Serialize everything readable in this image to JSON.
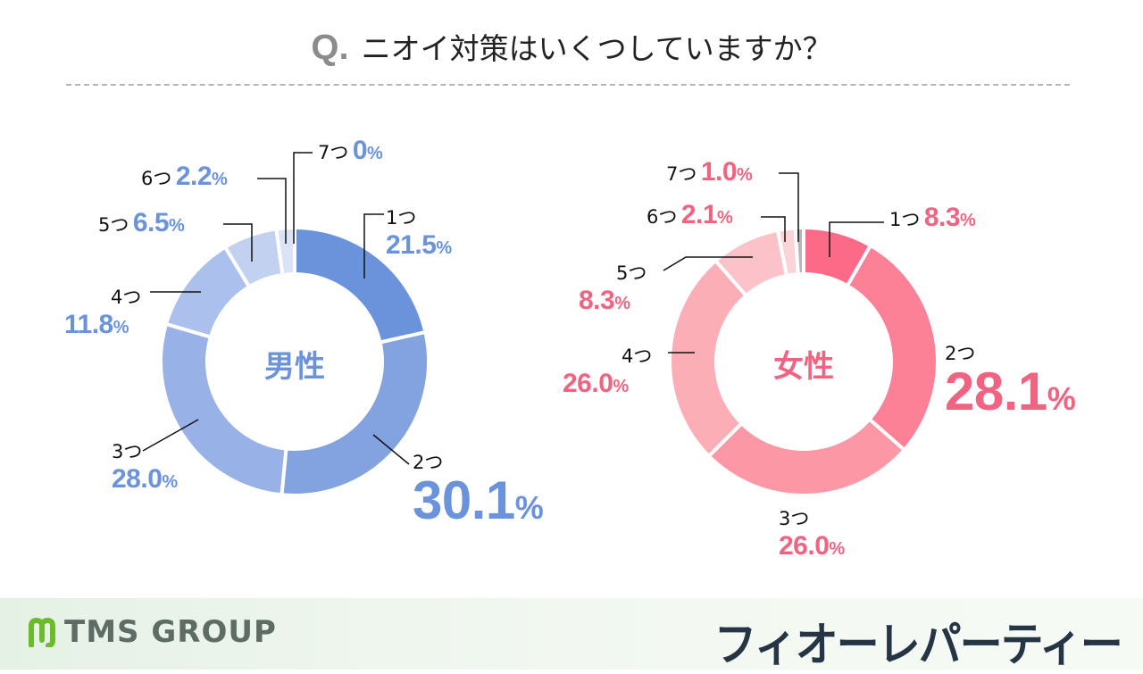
{
  "title": {
    "prefix": "Q.",
    "question": "ニオイ対策はいくつしていますか？"
  },
  "male": {
    "center_label": "男性",
    "accent": "#6a93dc",
    "items": [
      {
        "count": "1つ",
        "pct": "21.5",
        "value": 21.5,
        "color": "#6a93dc"
      },
      {
        "count": "2つ",
        "pct": "30.1",
        "value": 30.1,
        "color": "#82a2e0"
      },
      {
        "count": "3つ",
        "pct": "28.0",
        "value": 28.0,
        "color": "#98b1e7"
      },
      {
        "count": "4つ",
        "pct": "11.8",
        "value": 11.8,
        "color": "#abc0ec"
      },
      {
        "count": "5つ",
        "pct": "6.5",
        "value": 6.5,
        "color": "#c3d1f1"
      },
      {
        "count": "6つ",
        "pct": "2.2",
        "value": 2.2,
        "color": "#dbe3f6"
      },
      {
        "count": "7つ",
        "pct": "0",
        "value": 0,
        "color": "#eef2fb"
      }
    ]
  },
  "female": {
    "center_label": "女性",
    "accent": "#f06482",
    "items": [
      {
        "count": "1つ",
        "pct": "8.3",
        "value": 8.3,
        "color": "#fc6a87"
      },
      {
        "count": "2つ",
        "pct": "28.1",
        "value": 28.1,
        "color": "#fc8196"
      },
      {
        "count": "3つ",
        "pct": "26.0",
        "value": 26.0,
        "color": "#fc98a6"
      },
      {
        "count": "4つ",
        "pct": "26.0",
        "value": 26.0,
        "color": "#fbaeb6"
      },
      {
        "count": "5つ",
        "pct": "8.3",
        "value": 8.3,
        "color": "#fbc3c9"
      },
      {
        "count": "6つ",
        "pct": "2.1",
        "value": 2.1,
        "color": "#fad4d8"
      },
      {
        "count": "7つ",
        "pct": "1.0",
        "value": 1.0,
        "color": "#b5b5b5"
      }
    ]
  },
  "percent_sign": "%",
  "footer": {
    "company": "TMS GROUP",
    "brand": "フィオーレパーティー"
  },
  "chart_data": [
    {
      "type": "pie",
      "title": "ニオイ対策はいくつしていますか？ — 男性",
      "categories": [
        "1つ",
        "2つ",
        "3つ",
        "4つ",
        "5つ",
        "6つ",
        "7つ"
      ],
      "values": [
        21.5,
        30.1,
        28.0,
        11.8,
        6.5,
        2.2,
        0
      ],
      "unit": "%",
      "donut": true
    },
    {
      "type": "pie",
      "title": "ニオイ対策はいくつしていますか？ — 女性",
      "categories": [
        "1つ",
        "2つ",
        "3つ",
        "4つ",
        "5つ",
        "6つ",
        "7つ"
      ],
      "values": [
        8.3,
        28.1,
        26.0,
        26.0,
        8.3,
        2.1,
        1.0
      ],
      "unit": "%",
      "donut": true
    }
  ]
}
